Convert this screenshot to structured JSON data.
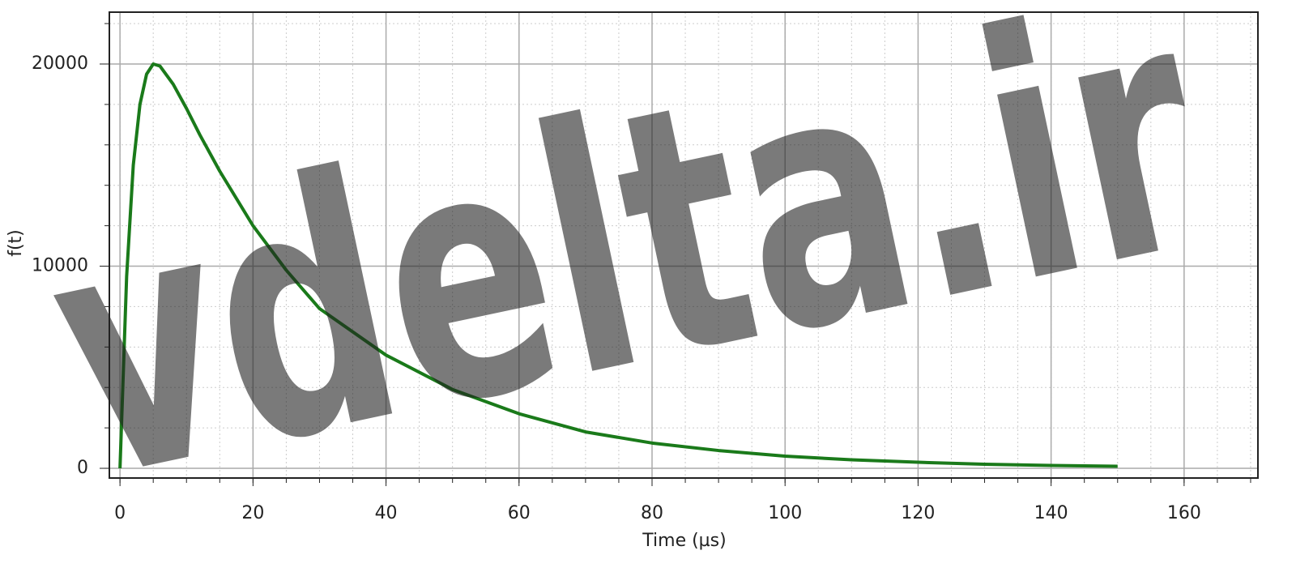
{
  "chart_data": {
    "type": "line",
    "xlabel": "Time (µs)",
    "ylabel": "f(t)",
    "watermark": "vdelta.ir",
    "x": [
      0,
      1,
      2,
      3,
      4,
      5,
      6,
      8,
      10,
      12,
      15,
      20,
      25,
      30,
      40,
      50,
      60,
      70,
      80,
      90,
      100,
      110,
      120,
      130,
      140,
      150
    ],
    "series": [
      {
        "color": "#1a7a1a",
        "values": [
          0,
          9500,
          15000,
          18000,
          19500,
          20000,
          19900,
          19000,
          17800,
          16500,
          14700,
          12000,
          9800,
          7900,
          5600,
          3900,
          2700,
          1800,
          1250,
          880,
          600,
          420,
          300,
          200,
          140,
          100
        ]
      }
    ],
    "xlim": [
      -1.6,
      171.1
    ],
    "xticks": [
      0,
      20,
      40,
      60,
      80,
      100,
      120,
      140,
      160
    ],
    "ylim": [
      -480,
      22565
    ],
    "yticks": [
      0,
      10000,
      20000
    ],
    "grid": true
  }
}
